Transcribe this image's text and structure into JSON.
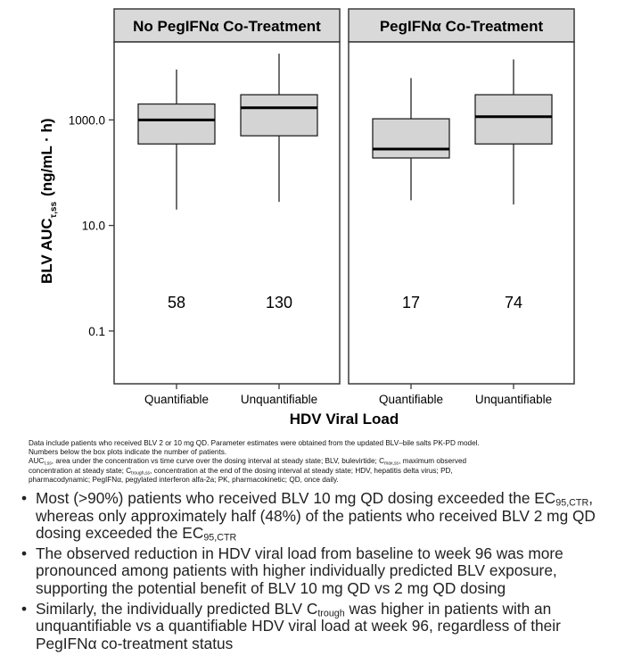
{
  "chart_data": {
    "type": "boxplot",
    "y_scale": "log",
    "ylim": [
      0.01,
      30000
    ],
    "yticks": [
      {
        "value": 0.1,
        "label": "0.1"
      },
      {
        "value": 10,
        "label": "10.0"
      },
      {
        "value": 1000,
        "label": "1000.0"
      }
    ],
    "ylabel_main": "BLV AUC",
    "ylabel_sub": "τ,ss",
    "ylabel_units": "(ng/mL · h)",
    "xlabel": "HDV Viral Load",
    "panels": [
      {
        "title": "No PegIFNα Co-Treatment",
        "categories": [
          "Quantifiable",
          "Unquantifiable"
        ],
        "boxes": [
          {
            "category": "Quantifiable",
            "min": 20,
            "q1": 350,
            "median": 1000,
            "q3": 2000,
            "max": 9000,
            "n": "58"
          },
          {
            "category": "Unquantifiable",
            "min": 28,
            "q1": 500,
            "median": 1700,
            "q3": 3000,
            "max": 18000,
            "n": "130"
          }
        ]
      },
      {
        "title": "PegIFNα Co-Treatment",
        "categories": [
          "Quantifiable",
          "Unquantifiable"
        ],
        "boxes": [
          {
            "category": "Quantifiable",
            "min": 30,
            "q1": 190,
            "median": 280,
            "q3": 1050,
            "max": 6200,
            "n": "17"
          },
          {
            "category": "Unquantifiable",
            "min": 25,
            "q1": 350,
            "median": 1150,
            "q3": 3000,
            "max": 14000,
            "n": "74"
          }
        ]
      }
    ]
  },
  "footnote": {
    "line1": "Data include patients who received BLV 2 or 10 mg QD. Parameter estimates were obtained from the updated BLV–bile salts PK-PD model.",
    "line2": "Numbers below the box plots indicate the number of patients.",
    "line3_auc": "AUC",
    "line3_auc_sub": "τ,ss",
    "line3_a": ", area under the concentration vs time curve over the dosing interval at steady state; BLV, bulevirtide; C",
    "line3_cmax_sub": "max,ss",
    "line3_b": ", maximum observed",
    "line4_a": "concentration at steady state; C",
    "line4_ctrough_sub": "trough,ss",
    "line4_b": ", concentration at the end of the dosing interval at steady state; HDV, hepatitis delta virus; PD,",
    "line5": "pharmacodynamic; PegIFNα, pegylated interferon alfa-2a; PK, pharmacokinetic; QD, once daily."
  },
  "bullets": {
    "b1_a": "Most (>90%) patients who received BLV 10 mg QD dosing exceeded the",
    "b1_ec1": "EC",
    "b1_ec1_sub": "95,CTR",
    "b1_b": ", whereas only approximately half (48%) of the patients who received",
    "b1_c": "BLV 2 mg QD dosing exceeded the EC",
    "b1_ec2_sub": "95,CTR",
    "b2": "The observed reduction in HDV viral load from baseline to week 96 was more pronounced among patients with higher individually predicted BLV exposure, supporting the potential benefit of BLV 10 mg QD vs 2 mg QD dosing",
    "b3_a": "Similarly, the individually predicted BLV C",
    "b3_sub": "trough",
    "b3_b": " was higher in patients with an unquantifiable vs a quantifiable HDV viral load at week 96, regardless of their PegIFNα co-treatment status"
  },
  "colors": {
    "panel_header_fill": "#d9d9d9",
    "box_fill": "#d4d4d4",
    "frame": "#3a3a3a"
  }
}
